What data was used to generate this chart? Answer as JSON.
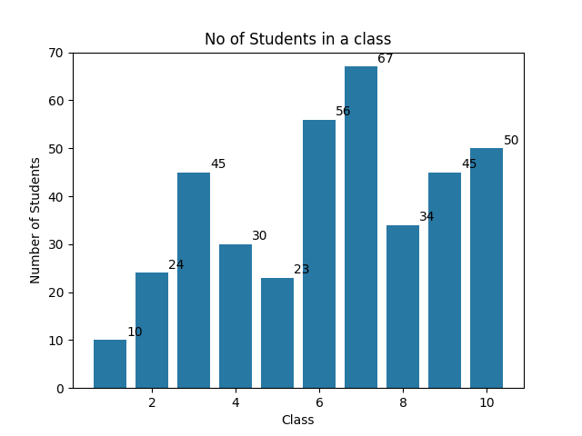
{
  "x_values": [
    1,
    2,
    3,
    4,
    5,
    6,
    7,
    8,
    9,
    10
  ],
  "y_values": [
    10,
    24,
    45,
    30,
    23,
    56,
    67,
    34,
    45,
    50
  ],
  "bar_color": "#2878a4",
  "title": "No of Students in a class",
  "xlabel": "Class",
  "ylabel": "Number of Students",
  "ylim": [
    0,
    70
  ],
  "title_fontsize": 12,
  "label_fontsize": 10,
  "figsize": [
    6.4,
    4.8
  ],
  "dpi": 100,
  "xticks": [
    2,
    4,
    6,
    8,
    10
  ]
}
